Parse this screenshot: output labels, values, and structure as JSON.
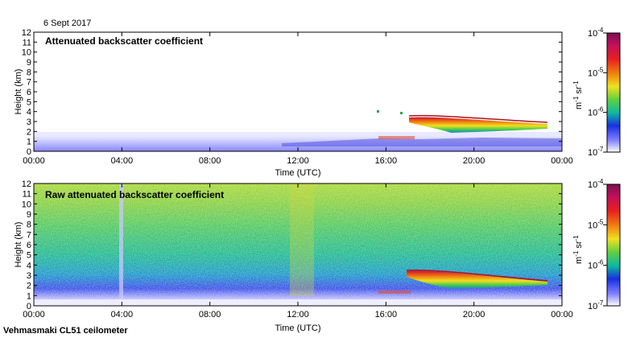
{
  "date": "6 Sept 2017",
  "footer": "Vehmasmaki CL51 ceilometer",
  "chart_data": [
    {
      "type": "heatmap",
      "title": "Attenuated backscatter coefficient",
      "xlabel": "Time (UTC)",
      "ylabel": "Height (km)",
      "x_ticks": [
        "00:00",
        "04:00",
        "08:00",
        "12:00",
        "16:00",
        "20:00",
        "00:00"
      ],
      "y_ticks": [
        "0",
        "1",
        "2",
        "3",
        "4",
        "5",
        "6",
        "7",
        "8",
        "9",
        "10",
        "11",
        "12"
      ],
      "xlim_hours": [
        0,
        24
      ],
      "ylim": [
        0,
        12
      ],
      "features": [
        {
          "name": "boundary layer",
          "hours": [
            0,
            24
          ],
          "height_km": [
            0,
            1.4
          ]
        },
        {
          "name": "elevated layer",
          "hours": [
            16.9,
            23.3
          ],
          "height_km": [
            2.0,
            3.6
          ]
        }
      ]
    },
    {
      "type": "heatmap",
      "title": "Raw attenuated backscatter coefficient",
      "xlabel": "Time (UTC)",
      "ylabel": "Height (km)",
      "x_ticks": [
        "00:00",
        "04:00",
        "08:00",
        "12:00",
        "16:00",
        "20:00",
        "00:00"
      ],
      "y_ticks": [
        "0",
        "1",
        "2",
        "3",
        "4",
        "5",
        "6",
        "7",
        "8",
        "9",
        "10",
        "11",
        "12"
      ],
      "xlim_hours": [
        0,
        24
      ],
      "ylim": [
        0,
        12
      ],
      "features": [
        {
          "name": "noise field",
          "hours": [
            0,
            24
          ],
          "height_km": [
            0,
            12
          ]
        },
        {
          "name": "elevated layer",
          "hours": [
            16.9,
            23.3
          ],
          "height_km": [
            2.0,
            3.6
          ]
        }
      ]
    }
  ],
  "colorbar": {
    "label_parts": [
      "m",
      "-1",
      " sr",
      "-1"
    ],
    "ticks": [
      {
        "base": "10",
        "exp": "-4"
      },
      {
        "base": "10",
        "exp": "-5"
      },
      {
        "base": "10",
        "exp": "-6"
      },
      {
        "base": "10",
        "exp": "-7"
      }
    ]
  },
  "colors": {
    "axis": "#000000",
    "gradient": [
      "#7a1050",
      "#d8102a",
      "#f07010",
      "#f0e020",
      "#70d040",
      "#10b890",
      "#2040e8",
      "#7070ff",
      "#ffffff"
    ]
  }
}
